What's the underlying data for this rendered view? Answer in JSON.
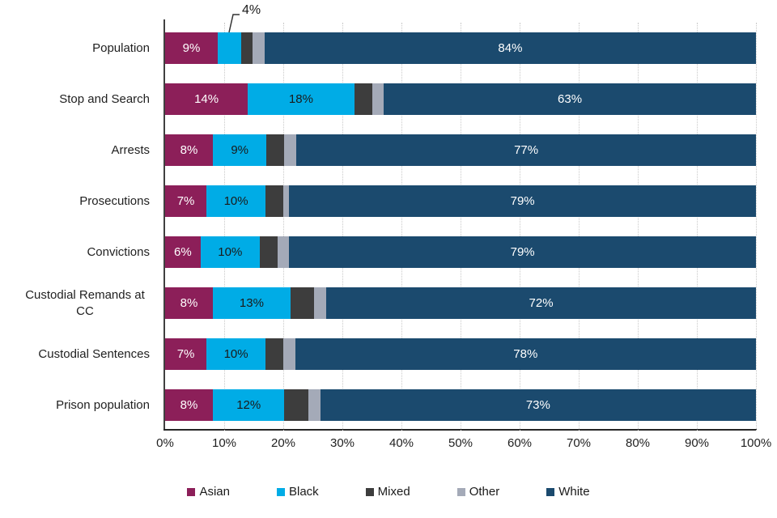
{
  "chart_data": {
    "type": "bar",
    "orientation": "horizontal",
    "stacked": true,
    "title": "",
    "categories": [
      "Population",
      "Stop and Search",
      "Arrests",
      "Prosecutions",
      "Convictions",
      "Custodial Remands at CC",
      "Custodial Sentences",
      "Prison population"
    ],
    "series": [
      {
        "name": "Asian",
        "color": "#8C1F59",
        "label_text_color": "#ffffff",
        "values": [
          9,
          14,
          8,
          7,
          6,
          8,
          7,
          8
        ],
        "labels": [
          "9%",
          "14%",
          "8%",
          "7%",
          "6%",
          "8%",
          "7%",
          "8%"
        ]
      },
      {
        "name": "Black",
        "color": "#00ACE6",
        "label_text_color": "#1a1a1a",
        "values": [
          4,
          18,
          9,
          10,
          10,
          13,
          10,
          12
        ],
        "labels": [
          null,
          "18%",
          "9%",
          "10%",
          "10%",
          "13%",
          "10%",
          "12%"
        ]
      },
      {
        "name": "Mixed",
        "color": "#3D3D3D",
        "label_text_color": "#ffffff",
        "values": [
          2,
          3,
          3,
          3,
          3,
          4,
          3,
          4
        ],
        "labels": null
      },
      {
        "name": "Other",
        "color": "#A4AAB8",
        "label_text_color": "#1a1a1a",
        "values": [
          2,
          2,
          2,
          1,
          2,
          2,
          2,
          2
        ],
        "labels": null
      },
      {
        "name": "White",
        "color": "#1B4A6E",
        "label_text_color": "#ffffff",
        "values": [
          84,
          63,
          77,
          79,
          79,
          72,
          78,
          73
        ],
        "labels": [
          "84%",
          "63%",
          "77%",
          "79%",
          "79%",
          "72%",
          "78%",
          "73%"
        ]
      }
    ],
    "annotation": {
      "text": "4%",
      "category": "Population",
      "series": "Black"
    },
    "x_axis": {
      "ticks": [
        "0%",
        "10%",
        "20%",
        "30%",
        "40%",
        "50%",
        "60%",
        "70%",
        "80%",
        "90%",
        "100%"
      ],
      "range": [
        0,
        100
      ],
      "gridlines": "dotted"
    },
    "legend": {
      "position": "bottom",
      "items": [
        "Asian",
        "Black",
        "Mixed",
        "Other",
        "White"
      ]
    }
  }
}
